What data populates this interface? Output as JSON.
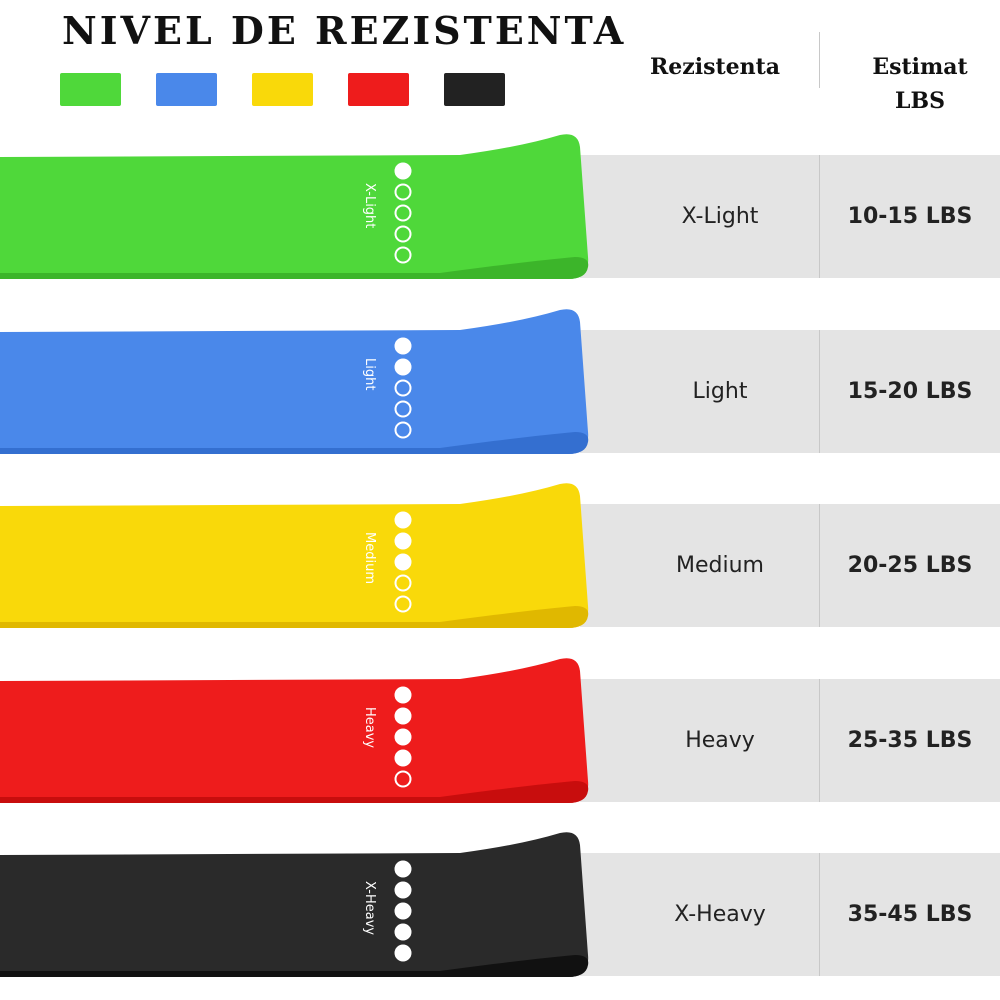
{
  "title": "NIVEL DE REZISTENTA",
  "swatches": [
    "#4fd83a",
    "#4a88ea",
    "#f9d90a",
    "#ee1c1c",
    "#222222"
  ],
  "headers": {
    "resistance": "Rezistenta",
    "estimate_line1": "Estimat",
    "estimate_line2": "LBS"
  },
  "rows": [
    {
      "level": "X-Light",
      "lbs": "10-15 LBS",
      "band_text": "X-Light",
      "color": "#4fd83a",
      "dark": "#3cb52a",
      "dots_filled": 1
    },
    {
      "level": "Light",
      "lbs": "15-20 LBS",
      "band_text": "Light",
      "color": "#4a88ea",
      "dark": "#346fd0",
      "dots_filled": 2
    },
    {
      "level": "Medium",
      "lbs": "20-25 LBS",
      "band_text": "Medium",
      "color": "#f9d90a",
      "dark": "#e0b800",
      "dots_filled": 3
    },
    {
      "level": "Heavy",
      "lbs": "25-35 LBS",
      "band_text": "Heavy",
      "color": "#ee1c1c",
      "dark": "#c80d0d",
      "dots_filled": 4
    },
    {
      "level": "X-Heavy",
      "lbs": "35-45 LBS",
      "band_text": "X-Heavy",
      "color": "#2a2a2a",
      "dark": "#111111",
      "dots_filled": 5
    }
  ]
}
